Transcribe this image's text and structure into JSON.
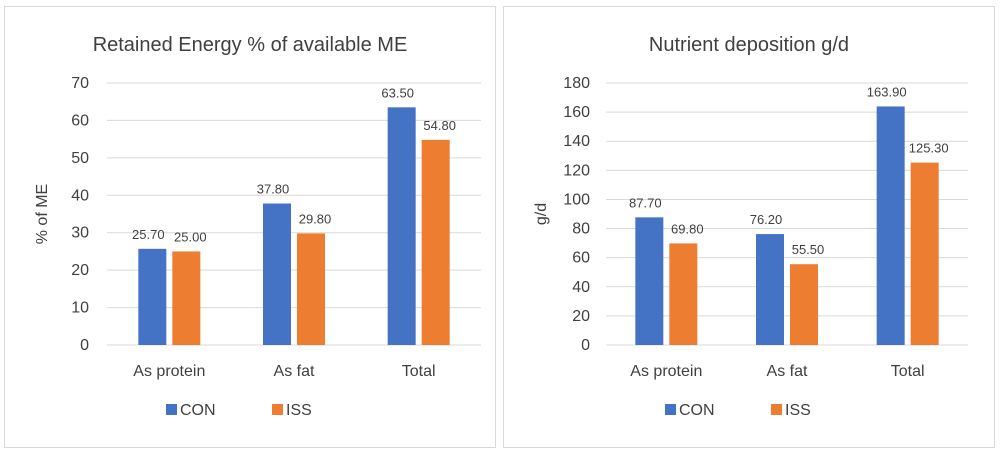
{
  "chart_data": [
    {
      "type": "bar",
      "title": "Retained Energy % of available ME",
      "xlabel": "",
      "ylabel": "% of ME",
      "categories": [
        "As protein",
        "As fat",
        "Total"
      ],
      "series": [
        {
          "name": "CON",
          "values": [
            25.7,
            37.8,
            63.5
          ],
          "labels": [
            "25.70",
            "37.80",
            "63.50"
          ],
          "color": "#4472c4"
        },
        {
          "name": "ISS",
          "values": [
            25.0,
            29.8,
            54.8
          ],
          "labels": [
            "25.00",
            "29.80",
            "54.80"
          ],
          "color": "#ed7d31"
        }
      ],
      "ylim": [
        0,
        70
      ],
      "yticks": [
        0,
        10,
        20,
        30,
        40,
        50,
        60,
        70
      ],
      "grid": true,
      "legend": "bottom"
    },
    {
      "type": "bar",
      "title": "Nutrient deposition g/d",
      "xlabel": "",
      "ylabel": "g/d",
      "categories": [
        "As protein",
        "As fat",
        "Total"
      ],
      "series": [
        {
          "name": "CON",
          "values": [
            87.7,
            76.2,
            163.9
          ],
          "labels": [
            "87.70",
            "76.20",
            "163.90"
          ],
          "color": "#4472c4"
        },
        {
          "name": "ISS",
          "values": [
            69.8,
            55.5,
            125.3
          ],
          "labels": [
            "69.80",
            "55.50",
            "125.30"
          ],
          "color": "#ed7d31"
        }
      ],
      "ylim": [
        0,
        180
      ],
      "yticks": [
        0,
        20,
        40,
        60,
        80,
        100,
        120,
        140,
        160,
        180
      ],
      "grid": true,
      "legend": "bottom"
    }
  ]
}
